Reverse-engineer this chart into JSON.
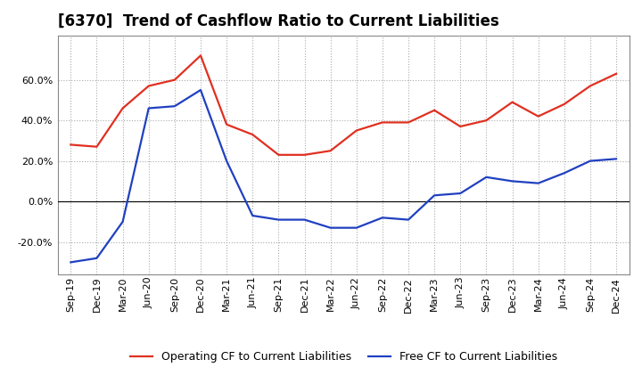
{
  "title": "[6370]  Trend of Cashflow Ratio to Current Liabilities",
  "x_labels": [
    "Sep-19",
    "Dec-19",
    "Mar-20",
    "Jun-20",
    "Sep-20",
    "Dec-20",
    "Mar-21",
    "Jun-21",
    "Sep-21",
    "Dec-21",
    "Mar-22",
    "Jun-22",
    "Sep-22",
    "Dec-22",
    "Mar-23",
    "Jun-23",
    "Sep-23",
    "Dec-23",
    "Mar-24",
    "Jun-24",
    "Sep-24",
    "Dec-24"
  ],
  "operating_cf": [
    0.28,
    0.27,
    0.46,
    0.57,
    0.6,
    0.72,
    0.38,
    0.33,
    0.23,
    0.23,
    0.25,
    0.35,
    0.39,
    0.39,
    0.45,
    0.37,
    0.4,
    0.49,
    0.42,
    0.48,
    0.57,
    0.63
  ],
  "free_cf": [
    -0.3,
    -0.28,
    -0.1,
    0.46,
    0.47,
    0.55,
    0.2,
    -0.07,
    -0.09,
    -0.09,
    -0.13,
    -0.13,
    -0.08,
    -0.09,
    0.03,
    0.04,
    0.12,
    0.1,
    0.09,
    0.14,
    0.2,
    0.21
  ],
  "operating_color": "#e03020",
  "free_color": "#2040c0",
  "ylim": [
    -0.36,
    0.82
  ],
  "yticks": [
    -0.2,
    0.0,
    0.2,
    0.4,
    0.6
  ],
  "background_color": "#ffffff",
  "plot_bg_color": "#ffffff",
  "grid_color": "#aaaaaa",
  "legend_operating": "Operating CF to Current Liabilities",
  "legend_free": "Free CF to Current Liabilities",
  "title_fontsize": 12,
  "tick_fontsize": 8,
  "legend_fontsize": 9,
  "line_width": 1.6
}
